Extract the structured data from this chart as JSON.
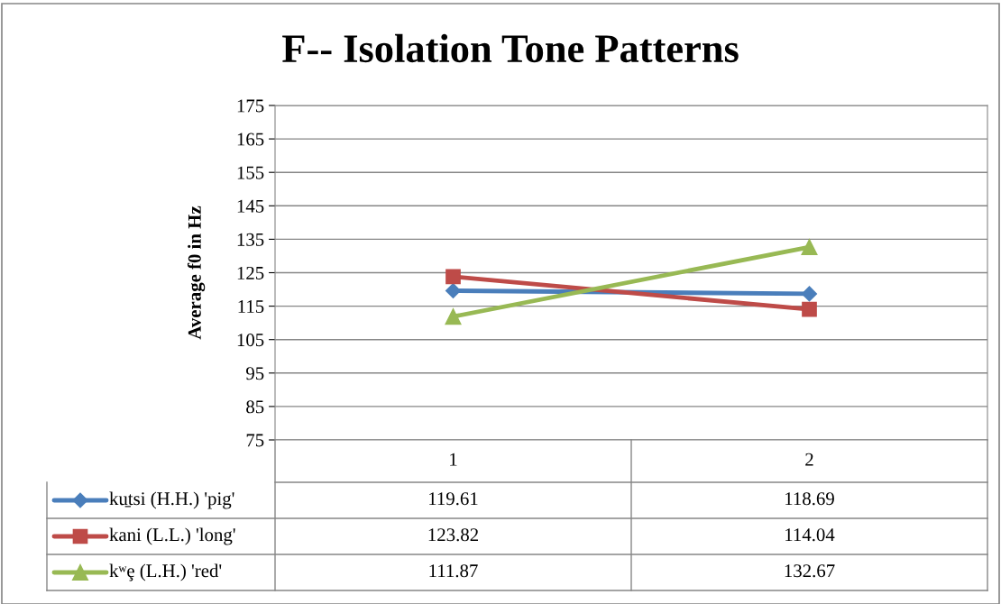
{
  "chart_data": {
    "type": "line",
    "title": "F-- Isolation Tone Patterns",
    "ylabel": "Average f0 in Hz",
    "categories": [
      "1",
      "2"
    ],
    "series": [
      {
        "name": "ku̱tsi (H.H.) 'pig'",
        "color": "#4a7ebb",
        "marker": "diamond",
        "values": [
          119.61,
          118.69
        ]
      },
      {
        "name": "kani (L.L.) 'long'",
        "color": "#be4b48",
        "marker": "square",
        "values": [
          123.82,
          114.04
        ]
      },
      {
        "name": "kʷȩ (L.H.) 'red'",
        "color": "#98b954",
        "marker": "triangle",
        "values": [
          111.87,
          132.67
        ]
      }
    ],
    "ylim": [
      75,
      175
    ],
    "yticks": [
      75,
      85,
      95,
      105,
      115,
      125,
      135,
      145,
      155,
      165,
      175
    ],
    "grid": "y",
    "legend": "bottom",
    "data_labels": true
  }
}
